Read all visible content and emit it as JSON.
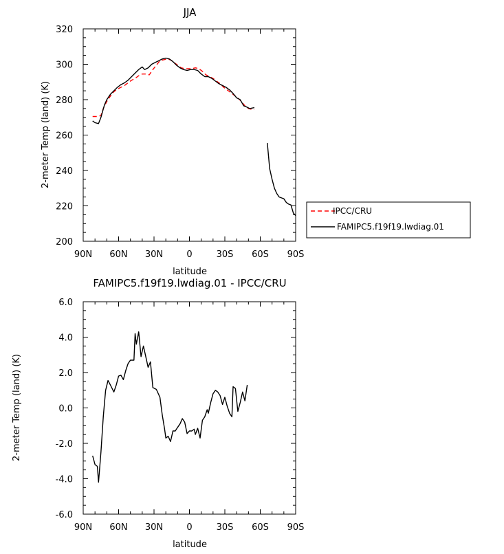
{
  "chart_data": [
    {
      "type": "line",
      "title": "JJA",
      "xlabel": "latitude",
      "ylabel": "2-meter Temp (land) (K)",
      "xlim": [
        90,
        -90
      ],
      "ylim": [
        200,
        320
      ],
      "xticks": [
        90,
        60,
        30,
        0,
        -30,
        -60,
        -90
      ],
      "xtick_labels": [
        "90N",
        "60N",
        "30N",
        "0",
        "30S",
        "60S",
        "90S"
      ],
      "yticks": [
        200,
        220,
        240,
        260,
        280,
        300,
        320
      ],
      "ytick_labels": [
        "200",
        "220",
        "240",
        "260",
        "280",
        "300",
        "320"
      ],
      "legend_position": "right",
      "series": [
        {
          "name": "IPCC/CRU",
          "color": "#ff0000",
          "dash": "dashed",
          "segments": [
            [
              [
                82,
                270.5
              ],
              [
                78,
                270.5
              ],
              [
                75,
                271
              ],
              [
                73,
                275
              ],
              [
                70,
                279
              ],
              [
                67,
                282
              ],
              [
                64,
                284.5
              ],
              [
                61,
                286
              ],
              [
                58,
                287
              ],
              [
                55,
                288
              ],
              [
                52,
                289.5
              ],
              [
                49,
                291
              ],
              [
                46,
                292
              ],
              [
                43,
                293.5
              ],
              [
                40,
                294.5
              ],
              [
                37,
                294.5
              ],
              [
                34,
                294
              ],
              [
                31,
                297
              ],
              [
                28,
                299.5
              ],
              [
                25,
                302
              ],
              [
                22,
                302.5
              ],
              [
                19,
                303
              ],
              [
                16,
                302.5
              ],
              [
                13,
                301
              ],
              [
                10,
                299.5
              ],
              [
                7,
                298
              ],
              [
                4,
                297.5
              ],
              [
                1,
                297.5
              ],
              [
                -2,
                297.5
              ],
              [
                -5,
                298
              ],
              [
                -8,
                297.5
              ],
              [
                -11,
                296
              ],
              [
                -14,
                294
              ],
              [
                -17,
                293
              ],
              [
                -20,
                292
              ],
              [
                -23,
                290.5
              ],
              [
                -26,
                289
              ],
              [
                -29,
                287
              ],
              [
                -32,
                285.5
              ],
              [
                -35,
                284
              ],
              [
                -38,
                282.5
              ],
              [
                -41,
                281
              ],
              [
                -44,
                279
              ],
              [
                -47,
                276.5
              ],
              [
                -50,
                275
              ],
              [
                -53,
                274.5
              ],
              [
                -55,
                274.5
              ]
            ]
          ]
        },
        {
          "name": "FAMIPC5.f19f19.lwdiag.01",
          "color": "#000000",
          "dash": "solid",
          "segments": [
            [
              [
                82,
                268
              ],
              [
                80,
                267
              ],
              [
                77,
                266.5
              ],
              [
                75,
                270
              ],
              [
                72,
                277
              ],
              [
                70,
                280
              ],
              [
                67,
                283
              ],
              [
                64,
                285
              ],
              [
                61,
                287
              ],
              [
                58,
                288.5
              ],
              [
                55,
                289.5
              ],
              [
                52,
                291
              ],
              [
                49,
                293
              ],
              [
                46,
                295
              ],
              [
                43,
                297
              ],
              [
                40,
                298.5
              ],
              [
                38,
                297
              ],
              [
                35,
                298
              ],
              [
                32,
                300
              ],
              [
                29,
                301
              ],
              [
                26,
                302
              ],
              [
                23,
                303
              ],
              [
                20,
                303.5
              ],
              [
                17,
                303
              ],
              [
                14,
                301.5
              ],
              [
                11,
                299.5
              ],
              [
                8,
                298
              ],
              [
                5,
                297
              ],
              [
                2,
                296.5
              ],
              [
                -1,
                297
              ],
              [
                -4,
                297
              ],
              [
                -7,
                296.5
              ],
              [
                -10,
                294.5
              ],
              [
                -13,
                293
              ],
              [
                -16,
                293
              ],
              [
                -19,
                292
              ],
              [
                -22,
                290.5
              ],
              [
                -25,
                289
              ],
              [
                -28,
                288
              ],
              [
                -31,
                287
              ],
              [
                -34,
                285.5
              ],
              [
                -37,
                283.5
              ],
              [
                -40,
                281
              ],
              [
                -43,
                280
              ],
              [
                -46,
                276.5
              ],
              [
                -48,
                276
              ],
              [
                -51,
                275
              ],
              [
                -55,
                275.5
              ]
            ],
            [
              [
                -66,
                255.5
              ],
              [
                -68,
                241
              ],
              [
                -70,
                235
              ],
              [
                -72,
                230
              ],
              [
                -74,
                227
              ],
              [
                -76,
                225
              ],
              [
                -78,
                224.5
              ],
              [
                -80,
                224
              ],
              [
                -82,
                222
              ],
              [
                -84,
                221
              ],
              [
                -86,
                220.5
              ],
              [
                -88,
                216
              ],
              [
                -90,
                214.5
              ]
            ]
          ]
        }
      ]
    },
    {
      "type": "line",
      "title": "FAMIPC5.f19f19.lwdiag.01 - IPCC/CRU",
      "xlabel": "latitude",
      "ylabel": "2-meter Temp (land) (K)",
      "xlim": [
        90,
        -90
      ],
      "ylim": [
        -6,
        6
      ],
      "xticks": [
        90,
        60,
        30,
        0,
        -30,
        -60,
        -90
      ],
      "xtick_labels": [
        "90N",
        "60N",
        "30N",
        "0",
        "30S",
        "60S",
        "90S"
      ],
      "yticks": [
        -6,
        -4,
        -2,
        0,
        2,
        4,
        6
      ],
      "ytick_labels": [
        "-6.0",
        "-4.0",
        "-2.0",
        "0.0",
        "2.0",
        "4.0",
        "6.0"
      ],
      "series": [
        {
          "color": "#000000",
          "dash": "solid",
          "segments": [
            [
              [
                82,
                -2.7
              ],
              [
                80,
                -3.2
              ],
              [
                78,
                -3.3
              ],
              [
                77,
                -4.2
              ],
              [
                75,
                -2.5
              ],
              [
                73,
                -0.5
              ],
              [
                71,
                1.0
              ],
              [
                69,
                1.55
              ],
              [
                67,
                1.3
              ],
              [
                64,
                0.9
              ],
              [
                62,
                1.3
              ],
              [
                60,
                1.8
              ],
              [
                58,
                1.85
              ],
              [
                56,
                1.6
              ],
              [
                54,
                2.1
              ],
              [
                52,
                2.5
              ],
              [
                50,
                2.7
              ],
              [
                47,
                2.7
              ],
              [
                46,
                4.2
              ],
              [
                45,
                3.6
              ],
              [
                43,
                4.3
              ],
              [
                41,
                2.9
              ],
              [
                39,
                3.5
              ],
              [
                37,
                2.9
              ],
              [
                35,
                2.3
              ],
              [
                33,
                2.6
              ],
              [
                31,
                1.15
              ],
              [
                28,
                1.05
              ],
              [
                25,
                0.6
              ],
              [
                23,
                -0.4
              ],
              [
                21,
                -1.2
              ],
              [
                20,
                -1.7
              ],
              [
                18,
                -1.6
              ],
              [
                16,
                -1.9
              ],
              [
                14,
                -1.3
              ],
              [
                12,
                -1.3
              ],
              [
                10,
                -1.1
              ],
              [
                8,
                -0.9
              ],
              [
                6,
                -0.6
              ],
              [
                4,
                -0.8
              ],
              [
                2,
                -1.45
              ],
              [
                0,
                -1.3
              ],
              [
                -2,
                -1.3
              ],
              [
                -4,
                -1.2
              ],
              [
                -5,
                -1.5
              ],
              [
                -7,
                -1.15
              ],
              [
                -9,
                -1.7
              ],
              [
                -11,
                -0.7
              ],
              [
                -13,
                -0.5
              ],
              [
                -15,
                -0.1
              ],
              [
                -16,
                -0.3
              ],
              [
                -18,
                0.3
              ],
              [
                -20,
                0.8
              ],
              [
                -22,
                1.0
              ],
              [
                -24,
                0.9
              ],
              [
                -26,
                0.7
              ],
              [
                -28,
                0.2
              ],
              [
                -30,
                0.6
              ],
              [
                -32,
                0.1
              ],
              [
                -34,
                -0.3
              ],
              [
                -36,
                -0.5
              ],
              [
                -37,
                1.2
              ],
              [
                -39,
                1.1
              ],
              [
                -41,
                -0.2
              ],
              [
                -43,
                0.3
              ],
              [
                -45,
                0.9
              ],
              [
                -47,
                0.4
              ],
              [
                -49,
                1.3
              ]
            ]
          ]
        }
      ]
    }
  ]
}
